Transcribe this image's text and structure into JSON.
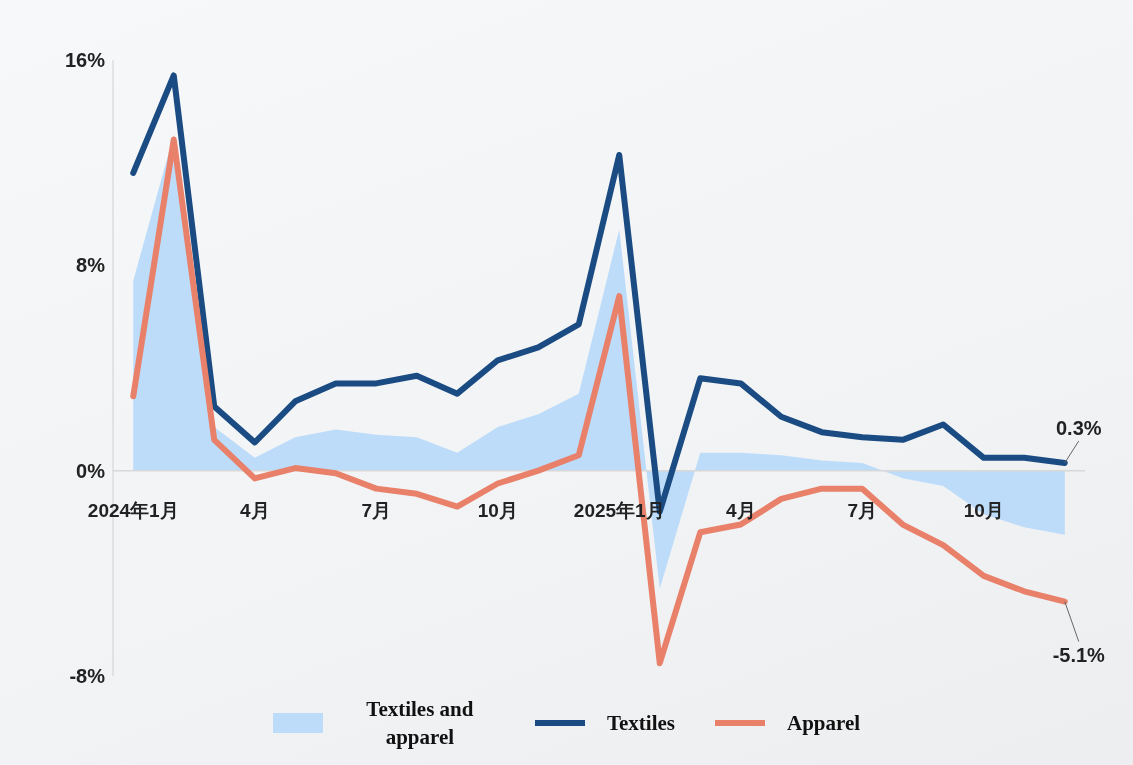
{
  "chart_data": {
    "type": "line",
    "categories": [
      "2024年1月",
      null,
      null,
      "4月",
      null,
      null,
      "7月",
      null,
      null,
      "10月",
      null,
      null,
      "2025年1月",
      null,
      null,
      "4月",
      null,
      null,
      "7月",
      null,
      null,
      "10月",
      null,
      null
    ],
    "series": [
      {
        "name": "Textiles and apparel",
        "type": "area",
        "color": "#bcdcfa",
        "values": [
          7.4,
          13.1,
          1.7,
          0.5,
          1.3,
          1.6,
          1.4,
          1.3,
          0.7,
          1.7,
          2.2,
          3.0,
          9.4,
          -4.6,
          0.7,
          0.7,
          0.6,
          0.4,
          0.3,
          -0.3,
          -0.6,
          -1.7,
          -2.2,
          -2.5
        ]
      },
      {
        "name": "Textiles",
        "color": "#1a4b82",
        "values": [
          11.6,
          15.4,
          2.5,
          1.1,
          2.7,
          3.4,
          3.4,
          3.7,
          3.0,
          4.3,
          4.8,
          5.7,
          12.3,
          -1.6,
          3.6,
          3.4,
          2.1,
          1.5,
          1.3,
          1.2,
          1.8,
          0.5,
          0.5,
          0.3
        ],
        "value_labels": [
          null,
          null,
          null,
          null,
          null,
          null,
          null,
          null,
          null,
          null,
          null,
          null,
          null,
          null,
          null,
          null,
          null,
          null,
          null,
          null,
          null,
          null,
          null,
          "0.3%"
        ]
      },
      {
        "name": "Apparel",
        "color": "#e8806a",
        "values": [
          2.9,
          12.9,
          1.2,
          -0.3,
          0.1,
          -0.1,
          -0.7,
          -0.9,
          -1.4,
          -0.5,
          0.0,
          0.6,
          6.8,
          -7.5,
          -2.4,
          -2.1,
          -1.1,
          -0.7,
          -0.7,
          -2.1,
          -2.9,
          -4.1,
          -4.7,
          -5.1
        ],
        "value_labels": [
          null,
          null,
          null,
          null,
          null,
          null,
          null,
          null,
          null,
          null,
          null,
          null,
          null,
          null,
          null,
          null,
          null,
          null,
          null,
          null,
          null,
          null,
          null,
          "-5.1%"
        ]
      }
    ],
    "ylim": [
      -8,
      16
    ],
    "yticks": [
      {
        "value": 16,
        "label": "16%"
      },
      {
        "value": 8,
        "label": "8%"
      },
      {
        "value": 0,
        "label": "0%"
      },
      {
        "value": -8,
        "label": "-8%"
      }
    ],
    "grid": false,
    "legend": "bottom"
  }
}
